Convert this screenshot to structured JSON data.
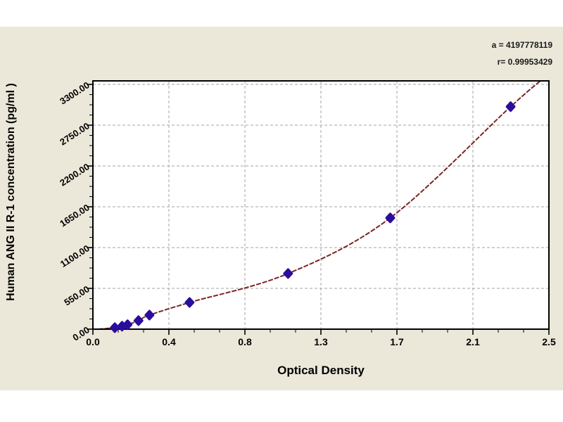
{
  "figure": {
    "background_color": "#ebe8da",
    "plot_background": "#ffffff",
    "grid_color": "#a3a3a3",
    "frame_color": "#000000"
  },
  "chart_data": {
    "type": "scatter",
    "title": "",
    "xlabel": "Optical Density",
    "ylabel": "Human ANG II R-1 concentration (pg/ml )",
    "xlim": [
      0,
      2.5
    ],
    "ylim": [
      0,
      3300
    ],
    "x_tick_labels": [
      "0.0",
      "0.4",
      "0.8",
      "1.3",
      "1.7",
      "2.1",
      "2.5"
    ],
    "y_tick_labels": [
      "0.00",
      "550.00",
      "1100.00",
      "1650.00",
      "2200.00",
      "2750.00",
      "3300.00"
    ],
    "x_minor_per_major": 2,
    "y_minor_per_major": 3,
    "grid": "dashed-major",
    "legend_position": "none",
    "annotations": [
      "a = 4197778119",
      "r= 0.99953429"
    ],
    "series": [
      {
        "name": "standard-points",
        "type": "scatter",
        "marker": "diamond",
        "color": "#2a0d9c",
        "points": [
          {
            "x": 0.12,
            "y": 20
          },
          {
            "x": 0.16,
            "y": 40
          },
          {
            "x": 0.19,
            "y": 60
          },
          {
            "x": 0.25,
            "y": 115
          },
          {
            "x": 0.31,
            "y": 190
          },
          {
            "x": 0.53,
            "y": 360
          },
          {
            "x": 1.07,
            "y": 750
          },
          {
            "x": 1.63,
            "y": 1500
          },
          {
            "x": 2.29,
            "y": 3000
          }
        ]
      },
      {
        "name": "fit-curve",
        "type": "line",
        "style": "dashed",
        "color": "#7a2626",
        "anchors": [
          {
            "x": 0.03,
            "y": 0
          },
          {
            "x": 0.12,
            "y": 20
          },
          {
            "x": 0.16,
            "y": 40
          },
          {
            "x": 0.19,
            "y": 60
          },
          {
            "x": 0.25,
            "y": 115
          },
          {
            "x": 0.31,
            "y": 190
          },
          {
            "x": 0.53,
            "y": 360
          },
          {
            "x": 1.07,
            "y": 750
          },
          {
            "x": 1.63,
            "y": 1500
          },
          {
            "x": 2.29,
            "y": 3000
          },
          {
            "x": 2.48,
            "y": 3400
          }
        ]
      }
    ]
  }
}
